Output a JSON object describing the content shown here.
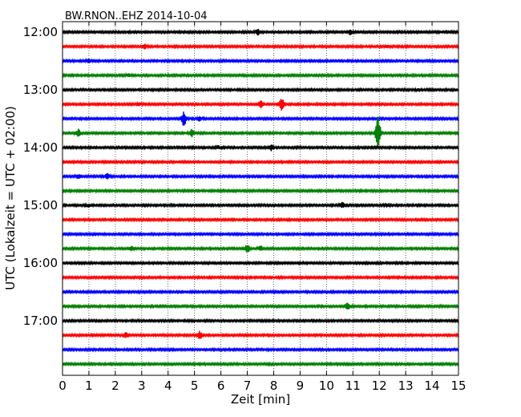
{
  "chart_data": {
    "type": "line",
    "title": "BW.RNON..EHZ 2014-10-04",
    "xlabel": "Zeit  [min]",
    "ylabel": "UTC (Lokalzeit = UTC + 02:00)",
    "xlim": [
      0,
      15
    ],
    "x_ticks": [
      "0",
      "1",
      "2",
      "3",
      "4",
      "5",
      "6",
      "7",
      "8",
      "9",
      "10",
      "11",
      "12",
      "13",
      "14",
      "15"
    ],
    "y_ticks": [
      "12:00",
      "13:00",
      "14:00",
      "15:00",
      "16:00",
      "17:00"
    ],
    "grid": true,
    "series_colors": [
      "#000000",
      "#ff0000",
      "#0000ff",
      "#008000"
    ],
    "rows": [
      {
        "time": "12:00",
        "color": "#000000",
        "events": [
          {
            "t": 7.4,
            "amp": 0.35
          },
          {
            "t": 10.9,
            "amp": 0.3
          }
        ]
      },
      {
        "time": "12:15",
        "color": "#ff0000",
        "events": [
          {
            "t": 3.1,
            "amp": 0.3
          },
          {
            "t": 12.3,
            "amp": 0.2
          }
        ]
      },
      {
        "time": "12:30",
        "color": "#0000ff",
        "events": [
          {
            "t": 1.0,
            "amp": 0.2
          }
        ]
      },
      {
        "time": "12:45",
        "color": "#008000",
        "events": [
          {
            "t": 2.5,
            "amp": 0.2
          }
        ]
      },
      {
        "time": "13:00",
        "color": "#000000",
        "events": [
          {
            "t": 13.5,
            "amp": 0.2
          }
        ]
      },
      {
        "time": "13:15",
        "color": "#ff0000",
        "events": [
          {
            "t": 7.5,
            "amp": 0.5
          },
          {
            "t": 8.3,
            "amp": 0.8
          },
          {
            "t": 2.9,
            "amp": 0.2
          }
        ]
      },
      {
        "time": "13:30",
        "color": "#0000ff",
        "events": [
          {
            "t": 4.6,
            "amp": 1.0
          },
          {
            "t": 5.2,
            "amp": 0.3
          }
        ]
      },
      {
        "time": "13:45",
        "color": "#008000",
        "events": [
          {
            "t": 0.6,
            "amp": 0.5
          },
          {
            "t": 4.9,
            "amp": 0.5
          },
          {
            "t": 11.95,
            "amp": 2.6
          }
        ]
      },
      {
        "time": "14:00",
        "color": "#000000",
        "events": [
          {
            "t": 7.9,
            "amp": 0.4
          },
          {
            "t": 5.9,
            "amp": 0.2
          }
        ]
      },
      {
        "time": "14:15",
        "color": "#ff0000",
        "events": []
      },
      {
        "time": "14:30",
        "color": "#0000ff",
        "events": [
          {
            "t": 0.6,
            "amp": 0.3
          },
          {
            "t": 1.7,
            "amp": 0.35
          }
        ]
      },
      {
        "time": "14:45",
        "color": "#008000",
        "events": []
      },
      {
        "time": "15:00",
        "color": "#000000",
        "events": [
          {
            "t": 10.6,
            "amp": 0.35
          },
          {
            "t": 1.0,
            "amp": 0.2
          },
          {
            "t": 12.3,
            "amp": 0.2
          }
        ]
      },
      {
        "time": "15:15",
        "color": "#ff0000",
        "events": []
      },
      {
        "time": "15:30",
        "color": "#0000ff",
        "events": []
      },
      {
        "time": "15:45",
        "color": "#008000",
        "events": [
          {
            "t": 2.6,
            "amp": 0.3
          },
          {
            "t": 7.0,
            "amp": 0.5
          },
          {
            "t": 7.5,
            "amp": 0.35
          }
        ]
      },
      {
        "time": "16:00",
        "color": "#000000",
        "events": []
      },
      {
        "time": "16:15",
        "color": "#ff0000",
        "events": []
      },
      {
        "time": "16:30",
        "color": "#0000ff",
        "events": []
      },
      {
        "time": "16:45",
        "color": "#008000",
        "events": [
          {
            "t": 10.8,
            "amp": 0.45
          }
        ]
      },
      {
        "time": "17:00",
        "color": "#000000",
        "events": []
      },
      {
        "time": "17:15",
        "color": "#ff0000",
        "events": [
          {
            "t": 2.4,
            "amp": 0.3
          },
          {
            "t": 5.2,
            "amp": 0.5
          }
        ]
      },
      {
        "time": "17:30",
        "color": "#0000ff",
        "events": []
      },
      {
        "time": "17:45",
        "color": "#008000",
        "events": []
      }
    ]
  }
}
